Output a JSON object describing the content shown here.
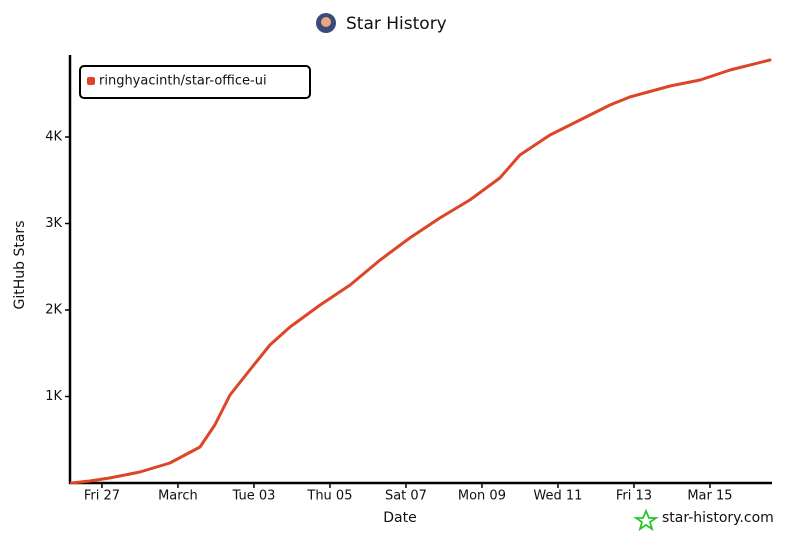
{
  "chart_data": {
    "type": "line",
    "title": "Star History",
    "x_label": "Date",
    "y_label": "GitHub Stars",
    "watermark": "star-history.com",
    "x": [
      26.2,
      26.68,
      27.2,
      28.0,
      28.79,
      29.58,
      29.97,
      30.37,
      30.89,
      31.42,
      31.95,
      32.74,
      33.53,
      34.32,
      35.1,
      35.89,
      36.68,
      37.47,
      38.0,
      38.79,
      39.58,
      40.37,
      40.89,
      41.95,
      42.74,
      43.53,
      44.58
    ],
    "series": [
      {
        "name": "ringhyacinth/star-office-ui",
        "color": "#dd4528",
        "values": [
          0,
          23,
          58,
          127,
          231,
          416,
          671,
          1017,
          1306,
          1595,
          1803,
          2058,
          2289,
          2578,
          2832,
          3064,
          3272,
          3526,
          3792,
          4023,
          4197,
          4370,
          4462,
          4590,
          4659,
          4775,
          4890
        ]
      }
    ],
    "xlim": [
      26.16,
      44.58
    ],
    "xticks": [
      {
        "value": 27,
        "label": "Fri 27"
      },
      {
        "value": 29,
        "label": "March"
      },
      {
        "value": 31,
        "label": "Tue 03"
      },
      {
        "value": 33,
        "label": "Thu 05"
      },
      {
        "value": 35,
        "label": "Sat 07"
      },
      {
        "value": 37,
        "label": "Mon 09"
      },
      {
        "value": 39,
        "label": "Wed 11"
      },
      {
        "value": 41,
        "label": "Fri 13"
      },
      {
        "value": 43,
        "label": "Mar 15"
      }
    ],
    "ylim": [
      0,
      4950
    ],
    "yticks": [
      {
        "value": 1000,
        "label": "1K"
      },
      {
        "value": 2000,
        "label": "2K"
      },
      {
        "value": 3000,
        "label": "3K"
      },
      {
        "value": 4000,
        "label": "4K"
      }
    ],
    "legend": "top-left"
  }
}
